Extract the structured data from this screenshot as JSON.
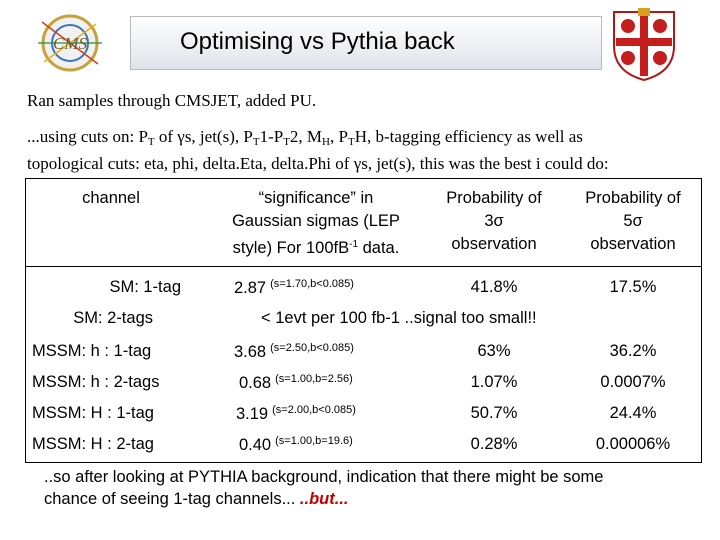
{
  "header": {
    "title": "Optimising vs Pythia back",
    "logo_left": "CMS",
    "logo_right": "university-crest"
  },
  "intro": {
    "line1": "Ran samples through CMSJET, added PU.",
    "line2_a": "...using cuts on: P",
    "line2_b": " of γs, jet(s), P",
    "line2_c": "1-P",
    "line2_d": "2, M",
    "line2_e": ", P",
    "line2_f": "H, b-tagging efficiency as well as",
    "sub_T": "T",
    "sub_H": "H",
    "line3": "topological cuts: eta, phi, delta.Eta, delta.Phi of γs, jet(s), this was the best i could do:"
  },
  "table": {
    "headers": {
      "channel": "channel",
      "sig_1": "“significance” in",
      "sig_2": "Gaussian sigmas (LEP",
      "sig_3a": "style)  For 100fB",
      "sig_sup": "-1",
      "sig_3b": " data.",
      "p3_1": "Probability of",
      "p3_2": "3σ",
      "p3_3": "observation",
      "p5_1": "Probability of",
      "p5_2": "5σ",
      "p5_3": "observation"
    },
    "rows": [
      {
        "channel": "SM: 1-tag",
        "sig": "2.87",
        "note": "(s=1.70,b<0.085)",
        "p3": "41.8%",
        "p5": "17.5%"
      },
      {
        "channel": "SM: 2-tags",
        "span": "< 1evt per 100 fb-1  ..signal too small!!"
      },
      {
        "channel": "MSSM: h : 1-tag",
        "sig": "3.68",
        "note": "(s=2.50,b<0.085)",
        "p3": "63%",
        "p5": "36.2%"
      },
      {
        "channel": "MSSM: h : 2-tags",
        "sig": "0.68",
        "note": "(s=1.00,b=2.56)",
        "p3": "1.07%",
        "p5": "0.0007%"
      },
      {
        "channel": "MSSM: H : 1-tag",
        "sig": "3.19",
        "note": "(s=2.00,b<0.085)",
        "p3": "50.7%",
        "p5": "24.4%"
      },
      {
        "channel": "MSSM: H : 2-tag",
        "sig": "0.40",
        "note": "(s=1.00,b=19.6)",
        "p3": "0.28%",
        "p5": "0.00006%"
      }
    ]
  },
  "footer": {
    "line1": "..so after looking at PYTHIA background, indication that there might be some",
    "line2": "chance of seeing 1-tag channels... ",
    "but": "..but..."
  }
}
